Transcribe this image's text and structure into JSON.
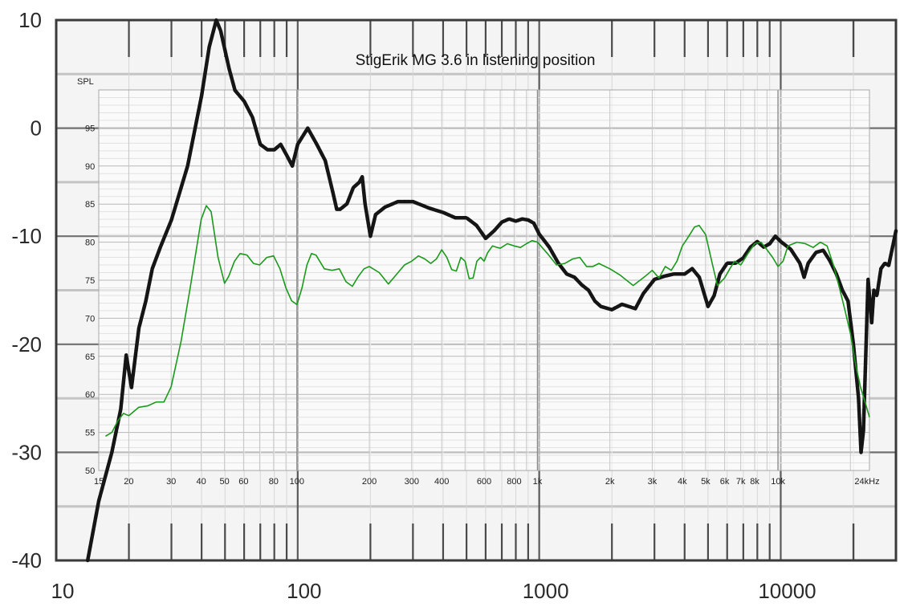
{
  "chart_data": [
    {
      "type": "line",
      "xscale": "log",
      "xlim": [
        10,
        30000
      ],
      "ylim": [
        -40,
        10
      ],
      "x_ticks": [
        10,
        100,
        1000,
        10000
      ],
      "y_ticks": [
        10,
        0,
        -10,
        -20,
        -30,
        -40
      ],
      "grid": true,
      "series": [
        {
          "color": "#111111",
          "points": [
            [
              13.5,
              -40
            ],
            [
              15,
              -34.5
            ],
            [
              17,
              -30
            ],
            [
              18.5,
              -26
            ],
            [
              19.5,
              -21
            ],
            [
              20.5,
              -24
            ],
            [
              22,
              -18.5
            ],
            [
              23.5,
              -16
            ],
            [
              25,
              -13
            ],
            [
              27,
              -11
            ],
            [
              30,
              -8.5
            ],
            [
              35,
              -3.5
            ],
            [
              40,
              3
            ],
            [
              43,
              7.5
            ],
            [
              46,
              10
            ],
            [
              48,
              9
            ],
            [
              52,
              5.5
            ],
            [
              55,
              3.5
            ],
            [
              60,
              2.5
            ],
            [
              65,
              1
            ],
            [
              70,
              -1.5
            ],
            [
              75,
              -2
            ],
            [
              80,
              -2
            ],
            [
              85,
              -1.5
            ],
            [
              90,
              -2.5
            ],
            [
              95,
              -3.5
            ],
            [
              100,
              -1.5
            ],
            [
              110,
              0
            ],
            [
              120,
              -1.5
            ],
            [
              130,
              -3
            ],
            [
              140,
              -6
            ],
            [
              145,
              -7.5
            ],
            [
              150,
              -7.5
            ],
            [
              160,
              -7
            ],
            [
              170,
              -5.5
            ],
            [
              180,
              -5
            ],
            [
              185,
              -4.5
            ],
            [
              190,
              -7
            ],
            [
              200,
              -10
            ],
            [
              210,
              -8
            ],
            [
              230,
              -7.3
            ],
            [
              260,
              -6.8
            ],
            [
              300,
              -6.8
            ],
            [
              350,
              -7.4
            ],
            [
              400,
              -7.8
            ],
            [
              450,
              -8.3
            ],
            [
              500,
              -8.3
            ],
            [
              550,
              -9
            ],
            [
              600,
              -10.2
            ],
            [
              650,
              -9.5
            ],
            [
              700,
              -8.7
            ],
            [
              750,
              -8.4
            ],
            [
              800,
              -8.6
            ],
            [
              850,
              -8.4
            ],
            [
              900,
              -8.5
            ],
            [
              950,
              -8.8
            ],
            [
              1000,
              -9.8
            ],
            [
              1100,
              -11
            ],
            [
              1200,
              -12.5
            ],
            [
              1300,
              -13.5
            ],
            [
              1400,
              -13.8
            ],
            [
              1500,
              -14.5
            ],
            [
              1600,
              -15
            ],
            [
              1700,
              -16
            ],
            [
              1800,
              -16.5
            ],
            [
              2000,
              -16.8
            ],
            [
              2200,
              -16.3
            ],
            [
              2500,
              -16.7
            ],
            [
              2700,
              -15.3
            ],
            [
              3000,
              -14
            ],
            [
              3300,
              -13.7
            ],
            [
              3600,
              -13.5
            ],
            [
              4000,
              -13.5
            ],
            [
              4300,
              -13
            ],
            [
              4600,
              -13.8
            ],
            [
              5000,
              -16.5
            ],
            [
              5300,
              -15.5
            ],
            [
              5600,
              -13.5
            ],
            [
              6000,
              -12.5
            ],
            [
              6500,
              -12.5
            ],
            [
              7000,
              -12
            ],
            [
              7500,
              -11
            ],
            [
              8000,
              -10.5
            ],
            [
              8500,
              -11
            ],
            [
              9000,
              -10.7
            ],
            [
              9500,
              -10
            ],
            [
              10000,
              -10.5
            ],
            [
              11000,
              -11.2
            ],
            [
              12000,
              -12.5
            ],
            [
              12500,
              -13.8
            ],
            [
              13000,
              -12.5
            ],
            [
              14000,
              -11.5
            ],
            [
              15000,
              -11.3
            ],
            [
              16000,
              -12.3
            ],
            [
              17000,
              -13.5
            ],
            [
              18000,
              -15
            ],
            [
              19000,
              -16
            ],
            [
              20000,
              -20
            ],
            [
              21000,
              -25
            ],
            [
              21500,
              -30
            ],
            [
              22000,
              -28
            ],
            [
              23000,
              -14
            ],
            [
              23800,
              -18
            ],
            [
              24300,
              -15
            ],
            [
              25000,
              -15.5
            ],
            [
              26000,
              -13
            ],
            [
              27000,
              -12.5
            ],
            [
              28000,
              -12.7
            ],
            [
              30000,
              -9.5
            ]
          ]
        }
      ]
    },
    {
      "type": "line",
      "title": "StigErik MG 3.6 in listening position",
      "ylabel": "SPL",
      "xscale": "log",
      "xlim": [
        15,
        24000
      ],
      "ylim": [
        50,
        100
      ],
      "x_ticks": [
        {
          "value": 15,
          "label": "15"
        },
        {
          "value": 20,
          "label": "20"
        },
        {
          "value": 30,
          "label": "30"
        },
        {
          "value": 40,
          "label": "40"
        },
        {
          "value": 50,
          "label": "50"
        },
        {
          "value": 60,
          "label": "60"
        },
        {
          "value": 80,
          "label": "80"
        },
        {
          "value": 100,
          "label": "100"
        },
        {
          "value": 200,
          "label": "200"
        },
        {
          "value": 300,
          "label": "300"
        },
        {
          "value": 400,
          "label": "400"
        },
        {
          "value": 600,
          "label": "600"
        },
        {
          "value": 800,
          "label": "800"
        },
        {
          "value": 1000,
          "label": "1k"
        },
        {
          "value": 2000,
          "label": "2k"
        },
        {
          "value": 3000,
          "label": "3k"
        },
        {
          "value": 4000,
          "label": "4k"
        },
        {
          "value": 5000,
          "label": "5k"
        },
        {
          "value": 6000,
          "label": "6k"
        },
        {
          "value": 7000,
          "label": "7k"
        },
        {
          "value": 8000,
          "label": "8k"
        },
        {
          "value": 10000,
          "label": "10k"
        },
        {
          "value": 24000,
          "label": "24kHz"
        }
      ],
      "y_ticks": [
        95,
        90,
        85,
        80,
        75,
        70,
        65,
        60,
        55,
        50
      ],
      "grid": true,
      "series": [
        {
          "color": "#1a9a1a",
          "points": [
            [
              16,
              54.5
            ],
            [
              17,
              55
            ],
            [
              18,
              56.5
            ],
            [
              19,
              57.5
            ],
            [
              20,
              57.2
            ],
            [
              22,
              58.3
            ],
            [
              24,
              58.5
            ],
            [
              26,
              59
            ],
            [
              28,
              59
            ],
            [
              30,
              61
            ],
            [
              33,
              67
            ],
            [
              36,
              74
            ],
            [
              40,
              83
            ],
            [
              42,
              84.8
            ],
            [
              44,
              84
            ],
            [
              47,
              78
            ],
            [
              50,
              74.6
            ],
            [
              52,
              75.5
            ],
            [
              55,
              77.5
            ],
            [
              58,
              78.5
            ],
            [
              62,
              78.3
            ],
            [
              66,
              77.2
            ],
            [
              70,
              77
            ],
            [
              75,
              78
            ],
            [
              80,
              78.2
            ],
            [
              85,
              76.5
            ],
            [
              90,
              74
            ],
            [
              95,
              72.3
            ],
            [
              100,
              71.8
            ],
            [
              105,
              74
            ],
            [
              110,
              77
            ],
            [
              115,
              78.5
            ],
            [
              120,
              78.3
            ],
            [
              130,
              76.5
            ],
            [
              140,
              76.3
            ],
            [
              150,
              76.5
            ],
            [
              160,
              74.8
            ],
            [
              170,
              74.2
            ],
            [
              180,
              75.5
            ],
            [
              190,
              76.5
            ],
            [
              200,
              76.8
            ],
            [
              220,
              76
            ],
            [
              240,
              74.5
            ],
            [
              260,
              75.8
            ],
            [
              280,
              77
            ],
            [
              300,
              77.5
            ],
            [
              320,
              78.2
            ],
            [
              340,
              77.8
            ],
            [
              360,
              77.2
            ],
            [
              380,
              77.8
            ],
            [
              400,
              79
            ],
            [
              420,
              78
            ],
            [
              440,
              76.4
            ],
            [
              460,
              76.2
            ],
            [
              480,
              78
            ],
            [
              500,
              77.5
            ],
            [
              520,
              75.2
            ],
            [
              540,
              75.3
            ],
            [
              560,
              77.5
            ],
            [
              580,
              78
            ],
            [
              600,
              77.5
            ],
            [
              620,
              78.6
            ],
            [
              650,
              79.5
            ],
            [
              680,
              79.3
            ],
            [
              700,
              79.2
            ],
            [
              750,
              79.8
            ],
            [
              800,
              79.5
            ],
            [
              850,
              79.3
            ],
            [
              900,
              79.8
            ],
            [
              950,
              80.2
            ],
            [
              1000,
              80
            ],
            [
              1100,
              78.5
            ],
            [
              1200,
              77
            ],
            [
              1300,
              77.2
            ],
            [
              1400,
              77.8
            ],
            [
              1500,
              78
            ],
            [
              1600,
              76.8
            ],
            [
              1700,
              76.8
            ],
            [
              1800,
              77.2
            ],
            [
              2000,
              76.5
            ],
            [
              2200,
              75.7
            ],
            [
              2500,
              74.3
            ],
            [
              2800,
              75.5
            ],
            [
              3000,
              76.3
            ],
            [
              3200,
              75.3
            ],
            [
              3400,
              76.8
            ],
            [
              3600,
              76.3
            ],
            [
              3800,
              77.5
            ],
            [
              4000,
              79.5
            ],
            [
              4200,
              80.5
            ],
            [
              4500,
              82
            ],
            [
              4700,
              82.2
            ],
            [
              5000,
              81
            ],
            [
              5300,
              77.5
            ],
            [
              5600,
              74.3
            ],
            [
              6000,
              75.3
            ],
            [
              6300,
              76.5
            ],
            [
              6600,
              77.5
            ],
            [
              7000,
              77
            ],
            [
              7500,
              78.5
            ],
            [
              8000,
              79.8
            ],
            [
              8500,
              80
            ],
            [
              9000,
              79
            ],
            [
              9500,
              78
            ],
            [
              10000,
              76.8
            ],
            [
              10500,
              77.5
            ],
            [
              11000,
              79.5
            ],
            [
              12000,
              80
            ],
            [
              13000,
              79.8
            ],
            [
              14000,
              79.3
            ],
            [
              15000,
              80
            ],
            [
              16000,
              79.5
            ],
            [
              17000,
              77
            ],
            [
              18000,
              74
            ],
            [
              19000,
              71
            ],
            [
              20000,
              68
            ],
            [
              21000,
              64
            ],
            [
              22000,
              61
            ],
            [
              23000,
              59
            ],
            [
              24000,
              57
            ]
          ]
        }
      ]
    }
  ]
}
